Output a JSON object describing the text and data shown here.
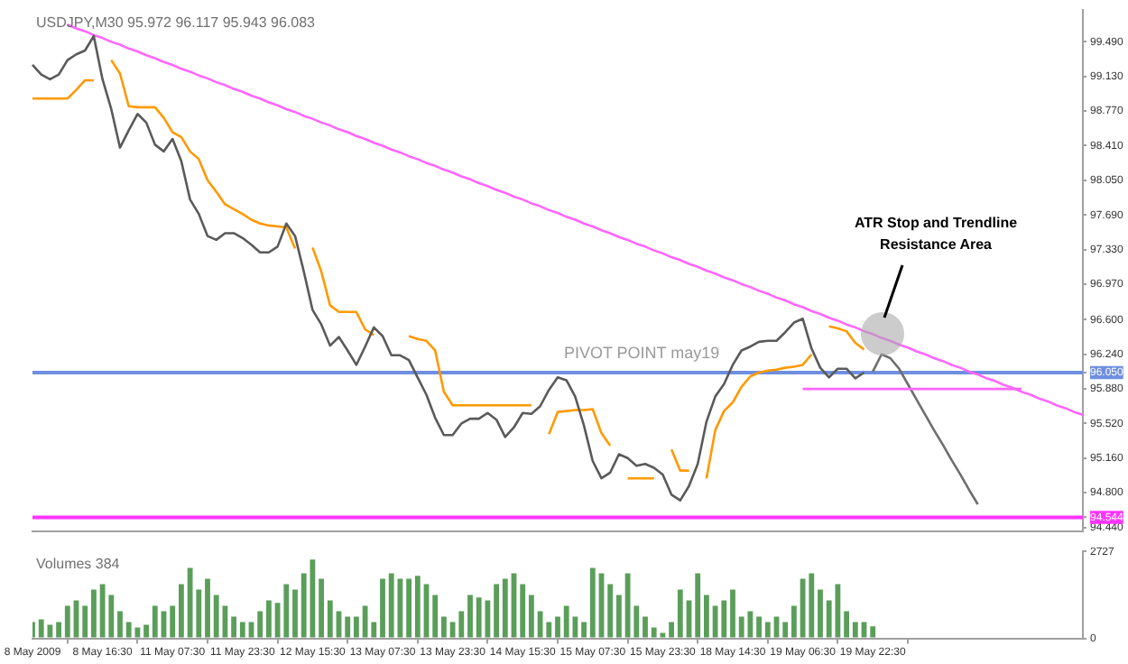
{
  "chart_data": [
    {
      "type": "line",
      "title": "USDJPY,M30 95.972 96.117 95.943 96.083",
      "ylim": [
        94.4,
        99.82
      ],
      "categories": [
        null,
        null,
        null,
        null,
        null,
        null,
        null,
        null,
        null,
        null,
        null,
        null,
        null,
        null,
        null,
        null,
        null,
        null,
        null,
        null,
        null,
        null,
        null,
        null,
        null,
        null,
        null,
        null,
        null,
        null,
        null,
        null,
        null,
        null,
        null,
        null,
        null,
        null,
        null,
        null,
        null,
        null,
        null,
        null,
        null,
        null,
        null,
        null,
        null,
        null,
        null,
        null,
        null,
        null,
        null,
        null,
        null,
        null,
        null,
        null,
        null,
        null,
        null,
        null,
        null,
        null,
        null,
        null,
        null,
        null,
        null,
        null,
        null,
        null,
        null,
        null,
        null,
        null,
        null,
        null,
        null,
        null,
        null,
        null,
        null,
        null,
        null,
        null,
        null,
        null,
        null,
        null,
        null,
        null,
        null,
        null,
        null,
        null,
        null,
        null,
        null,
        null,
        null,
        null,
        null,
        null,
        null,
        null,
        null,
        null,
        null,
        null,
        null,
        null,
        null,
        null,
        null,
        null,
        null,
        null,
        null
      ],
      "yticks": [
        {
          "value": 94.44,
          "label": "94.440"
        },
        {
          "value": 94.544,
          "label": "94.544"
        },
        {
          "value": 94.8,
          "label": "94.800"
        },
        {
          "value": 95.16,
          "label": "95.160"
        },
        {
          "value": 95.52,
          "label": "95.520"
        },
        {
          "value": 95.88,
          "label": "95.880"
        },
        {
          "value": 96.05,
          "label": "96.050"
        },
        {
          "value": 96.24,
          "label": "96.240"
        },
        {
          "value": 96.6,
          "label": "96.600"
        },
        {
          "value": 96.97,
          "label": "96.970"
        },
        {
          "value": 97.33,
          "label": "97.330"
        },
        {
          "value": 97.69,
          "label": "97.690"
        },
        {
          "value": 98.05,
          "label": "98.050"
        },
        {
          "value": 98.41,
          "label": "98.410"
        },
        {
          "value": 98.77,
          "label": "98.770"
        },
        {
          "value": 99.13,
          "label": "99.130"
        },
        {
          "value": 99.49,
          "label": "99.490"
        }
      ],
      "tick_labels": "y",
      "grid": false,
      "legend": false,
      "series": [
        {
          "type": "line",
          "color": "#5a5a5a",
          "values": [
            99.25,
            99.15,
            99.1,
            99.15,
            99.3,
            99.36,
            99.4,
            99.55,
            99.1,
            98.79,
            98.39,
            98.57,
            98.74,
            98.65,
            98.42,
            98.35,
            98.48,
            98.25,
            97.85,
            97.7,
            97.47,
            97.43,
            97.5,
            97.5,
            97.45,
            97.38,
            97.3,
            97.3,
            97.36,
            97.6,
            97.47,
            97.1,
            96.7,
            96.55,
            96.33,
            96.42,
            96.28,
            96.13,
            96.32,
            96.52,
            96.43,
            96.23,
            96.23,
            96.18,
            96,
            95.82,
            95.58,
            95.4,
            95.4,
            95.52,
            95.57,
            95.57,
            95.63,
            95.56,
            95.38,
            95.48,
            95.63,
            95.62,
            95.7,
            95.87,
            96,
            95.97,
            95.8,
            95.5,
            95.13,
            94.95,
            95.01,
            95.2,
            95.16,
            95.08,
            95.1,
            95.06,
            94.99,
            94.78,
            94.72,
            94.87,
            95.1,
            95.54,
            95.8,
            95.93,
            96.13,
            96.28,
            96.32,
            96.37,
            96.38,
            96.38,
            96.47,
            96.57,
            96.61,
            96.3,
            96.1,
            96,
            96.09,
            96.09,
            95.99,
            96.05,
            null,
            null,
            null,
            null,
            null,
            null,
            null,
            null,
            null,
            null,
            null,
            null,
            null,
            null,
            null,
            null,
            null,
            null,
            null,
            null,
            null,
            null,
            null,
            null,
            null
          ]
        },
        {
          "type": "line",
          "color": "#ff9900",
          "values": [
            98.9,
            98.9,
            98.9,
            98.9,
            98.9,
            98.99,
            99.09,
            99.09,
            null,
            99.3,
            99.16,
            98.82,
            98.81,
            98.81,
            98.81,
            98.7,
            98.55,
            98.5,
            98.35,
            98.27,
            98.05,
            97.93,
            97.8,
            97.75,
            97.7,
            97.64,
            97.6,
            97.58,
            97.57,
            97.56,
            97.34,
            null,
            97.35,
            97.1,
            96.75,
            96.68,
            96.68,
            96.68,
            96.5,
            96.44,
            null,
            null,
            null,
            96.43,
            96.4,
            96.38,
            96.28,
            95.85,
            95.71,
            95.71,
            95.71,
            95.71,
            95.71,
            95.71,
            95.71,
            95.71,
            95.71,
            95.71,
            null,
            95.41,
            95.64,
            95.65,
            95.66,
            95.66,
            95.67,
            95.42,
            95.29,
            null,
            94.95,
            94.95,
            94.95,
            94.95,
            null,
            95.25,
            95.03,
            95.03,
            null,
            94.95,
            95.45,
            95.65,
            95.74,
            95.9,
            96.01,
            96.05,
            96.07,
            96.08,
            96.1,
            96.11,
            96.13,
            96.24,
            null,
            96.53,
            96.51,
            96.48,
            96.36,
            96.29,
            null,
            null,
            null,
            null,
            null,
            null,
            null,
            null,
            null,
            null,
            null,
            null,
            null,
            null,
            null,
            null,
            null,
            null,
            null,
            null,
            null,
            null,
            null,
            null,
            null
          ]
        },
        {
          "type": "line",
          "color": "#ff66ff",
          "values": [
            null,
            null,
            null,
            null,
            99.67,
            99.63,
            99.6,
            99.56,
            99.53,
            99.49,
            99.46,
            99.42,
            99.39,
            99.35,
            99.32,
            99.28,
            99.25,
            99.21,
            99.18,
            99.14,
            99.11,
            99.07,
            99.04,
            99,
            98.97,
            98.93,
            98.9,
            98.86,
            98.83,
            98.79,
            98.76,
            98.72,
            98.69,
            98.65,
            98.62,
            98.58,
            98.55,
            98.51,
            98.48,
            98.44,
            98.41,
            98.37,
            98.34,
            98.3,
            98.27,
            98.23,
            98.2,
            98.16,
            98.13,
            98.09,
            98.06,
            98.02,
            97.99,
            97.95,
            97.92,
            97.88,
            97.85,
            97.81,
            97.78,
            97.74,
            97.71,
            97.67,
            97.64,
            97.6,
            97.57,
            97.53,
            97.5,
            97.46,
            97.43,
            97.39,
            97.36,
            97.32,
            97.29,
            97.25,
            97.22,
            97.18,
            97.15,
            97.11,
            97.08,
            97.04,
            97.01,
            96.97,
            96.94,
            96.9,
            96.87,
            96.83,
            96.8,
            96.76,
            96.73,
            96.69,
            96.66,
            96.62,
            96.59,
            96.55,
            96.52,
            96.48,
            96.45,
            96.41,
            96.38,
            96.34,
            96.31,
            96.27,
            96.24,
            96.2,
            96.17,
            96.13,
            96.1,
            96.06,
            96.03,
            95.99,
            95.96,
            95.92,
            95.89,
            95.85,
            95.82,
            95.78,
            95.75,
            95.71,
            95.68,
            95.64,
            95.61
          ]
        },
        {
          "type": "line",
          "color": "#ff66ff",
          "values": [
            null,
            null,
            null,
            null,
            null,
            null,
            null,
            null,
            null,
            null,
            null,
            null,
            null,
            null,
            null,
            null,
            null,
            null,
            null,
            null,
            null,
            null,
            null,
            null,
            null,
            null,
            null,
            null,
            null,
            null,
            null,
            null,
            null,
            null,
            null,
            null,
            null,
            null,
            null,
            null,
            null,
            null,
            null,
            null,
            null,
            null,
            null,
            null,
            null,
            null,
            null,
            null,
            null,
            null,
            null,
            null,
            null,
            null,
            null,
            null,
            null,
            null,
            null,
            null,
            null,
            null,
            null,
            null,
            null,
            null,
            null,
            null,
            null,
            null,
            null,
            null,
            null,
            null,
            null,
            null,
            null,
            null,
            null,
            null,
            null,
            null,
            null,
            null,
            95.88,
            95.88,
            95.88,
            95.88,
            95.88,
            95.88,
            95.88,
            95.88,
            95.88,
            95.88,
            95.88,
            95.88,
            95.88,
            95.88,
            95.88,
            95.88,
            95.88,
            95.88,
            95.88,
            95.88,
            95.88,
            95.88,
            95.88,
            95.88,
            95.88,
            95.88,
            null,
            null,
            null,
            null,
            null,
            null,
            null
          ]
        },
        {
          "type": "line",
          "color": "#6e6e6e",
          "values": [
            null,
            null,
            null,
            null,
            null,
            null,
            null,
            null,
            null,
            null,
            null,
            null,
            null,
            null,
            null,
            null,
            null,
            null,
            null,
            null,
            null,
            null,
            null,
            null,
            null,
            null,
            null,
            null,
            null,
            null,
            null,
            null,
            null,
            null,
            null,
            null,
            null,
            null,
            null,
            null,
            null,
            null,
            null,
            null,
            null,
            null,
            null,
            null,
            null,
            null,
            null,
            null,
            null,
            null,
            null,
            null,
            null,
            null,
            null,
            null,
            null,
            null,
            null,
            null,
            null,
            null,
            null,
            null,
            null,
            null,
            null,
            null,
            null,
            null,
            null,
            null,
            null,
            null,
            null,
            null,
            null,
            null,
            null,
            null,
            null,
            null,
            null,
            null,
            null,
            null,
            null,
            null,
            null,
            null,
            null,
            null,
            96.06,
            96.24,
            96.2,
            96.09,
            95.93,
            95.77,
            95.61,
            95.45,
            95.3,
            95.14,
            94.99,
            94.83,
            94.68,
            null,
            null,
            null,
            null,
            null,
            null,
            null,
            null,
            null,
            null,
            null,
            null
          ]
        }
      ],
      "ref_lines": [
        {
          "axis": "y",
          "value": 96.05,
          "label": "PIVOT POINT may19",
          "color": "#6f8fdf"
        },
        {
          "axis": "y",
          "value": 94.544,
          "color": "#ff33ff"
        }
      ],
      "annotations": [
        "ATR Stop and Trendline Resistance Area"
      ]
    },
    {
      "type": "bar",
      "title": "Volumes 384",
      "color": "#5a9e5a",
      "ylim": [
        0,
        2727
      ],
      "yticks": [
        0,
        2727
      ],
      "categories": [
        "8 May 2009",
        null,
        null,
        null,
        null,
        null,
        null,
        null,
        "8 May 16:30",
        null,
        null,
        null,
        null,
        null,
        null,
        null,
        "11 May 07:30",
        null,
        null,
        null,
        null,
        null,
        null,
        null,
        "11 May 23:30",
        null,
        null,
        null,
        null,
        null,
        null,
        null,
        "12 May 15:30",
        null,
        null,
        null,
        null,
        null,
        null,
        null,
        "13 May 07:30",
        null,
        null,
        null,
        null,
        null,
        null,
        null,
        "13 May 23:30",
        null,
        null,
        null,
        null,
        null,
        null,
        null,
        "14 May 15:30",
        null,
        null,
        null,
        null,
        null,
        null,
        null,
        "15 May 07:30",
        null,
        null,
        null,
        null,
        null,
        null,
        null,
        "15 May 23:30",
        null,
        null,
        null,
        null,
        null,
        null,
        null,
        "18 May 14:30",
        null,
        null,
        null,
        null,
        null,
        null,
        null,
        "19 May 06:30",
        null,
        null,
        null,
        null,
        null,
        null,
        null,
        "19 May 22:30",
        null,
        null,
        null,
        null,
        null,
        null,
        null,
        null,
        null,
        null,
        null,
        null,
        null,
        null,
        null,
        null,
        null,
        null,
        null,
        null,
        null,
        null,
        null,
        null
      ],
      "grid": false,
      "legend": false,
      "values": [
        510,
        600,
        430,
        510,
        1020,
        1190,
        1020,
        1530,
        1700,
        1360,
        850,
        510,
        340,
        430,
        1020,
        850,
        1020,
        1700,
        2210,
        1530,
        1870,
        1360,
        1020,
        680,
        510,
        510,
        850,
        1190,
        1110,
        1700,
        1530,
        2040,
        2470,
        1870,
        1190,
        850,
        680,
        680,
        1020,
        510,
        1870,
        2040,
        1870,
        1870,
        1960,
        1700,
        1360,
        680,
        510,
        850,
        1360,
        1280,
        1190,
        1700,
        1870,
        2040,
        1700,
        1360,
        850,
        510,
        680,
        1020,
        680,
        510,
        2210,
        2040,
        1700,
        1360,
        2040,
        1020,
        680,
        340,
        170,
        510,
        1530,
        1190,
        2040,
        1360,
        1020,
        1190,
        1530,
        680,
        850,
        680,
        510,
        680,
        510,
        1020,
        1870,
        2040,
        1530,
        1190,
        1700,
        850,
        510,
        510,
        380,
        null,
        null,
        null,
        null,
        null,
        null,
        null,
        null,
        null,
        null,
        null,
        null,
        null,
        null,
        null,
        null,
        null,
        null,
        null,
        null,
        null,
        null,
        null,
        null
      ]
    }
  ]
}
